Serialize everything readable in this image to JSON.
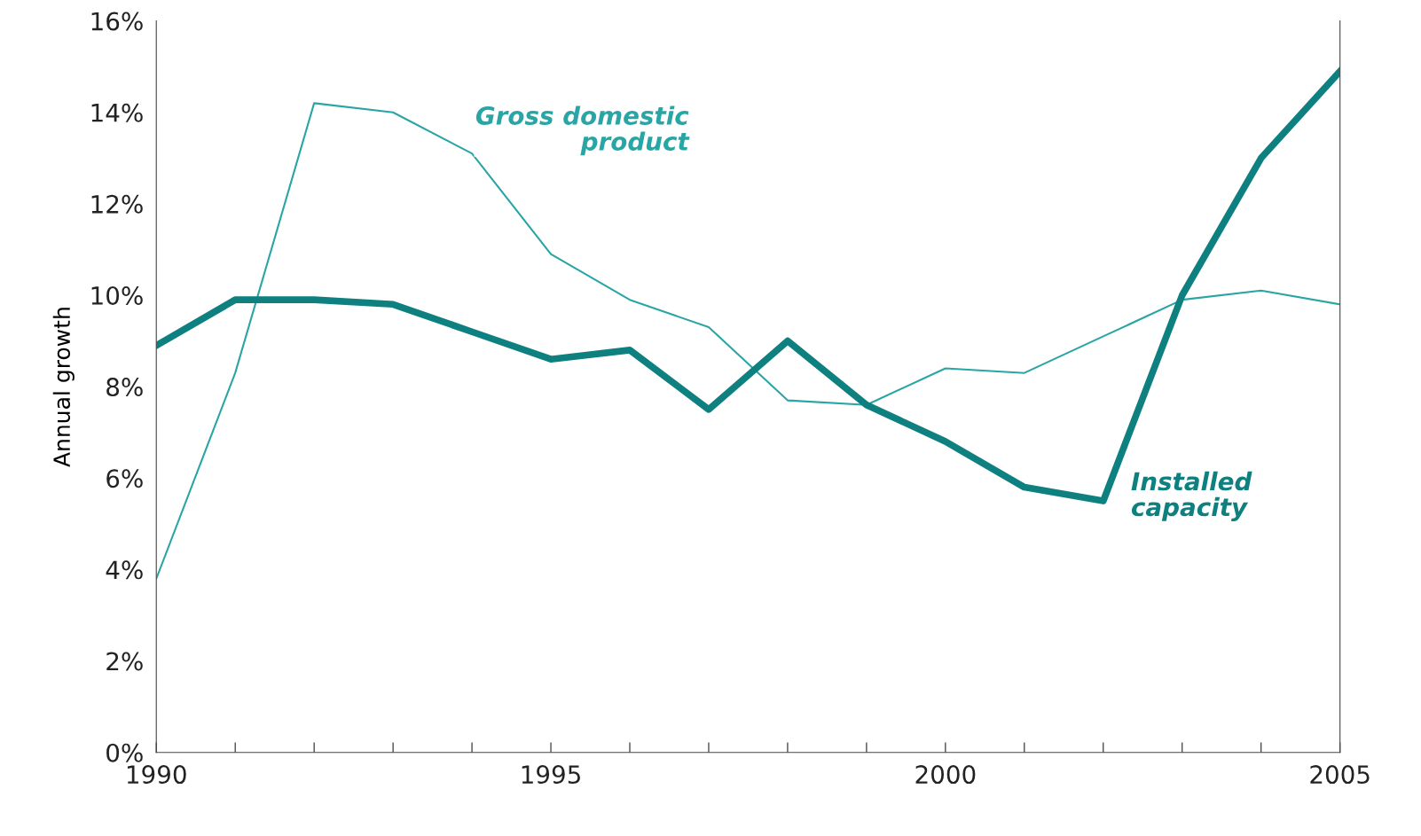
{
  "chart_data": {
    "type": "line",
    "ylabel": "Annual growth",
    "x": [
      1990,
      1991,
      1992,
      1993,
      1994,
      1995,
      1996,
      1997,
      1998,
      1999,
      2000,
      2001,
      2002,
      2003,
      2004,
      2005
    ],
    "series": [
      {
        "name": "Gross domestic product",
        "color": "#2aa5a5",
        "values": [
          3.8,
          8.3,
          14.2,
          14.0,
          13.1,
          10.9,
          9.9,
          9.3,
          7.7,
          7.6,
          8.4,
          8.3,
          9.1,
          9.9,
          10.1,
          9.8
        ]
      },
      {
        "name": "Installed capacity",
        "color": "#0e8080",
        "values": [
          8.9,
          9.9,
          9.9,
          9.8,
          9.2,
          8.6,
          8.8,
          7.5,
          9.0,
          7.6,
          6.8,
          5.8,
          5.5,
          10.0,
          13.0,
          14.9
        ]
      }
    ],
    "xlim": [
      1990,
      2005
    ],
    "xticks": [
      1990,
      {
        "value": 1991,
        "label": null
      },
      {
        "value": 1992,
        "label": null
      },
      {
        "value": 1993,
        "label": null
      },
      {
        "value": 1994,
        "label": null
      },
      1995,
      {
        "value": 1996,
        "label": null
      },
      {
        "value": 1997,
        "label": null
      },
      {
        "value": 1998,
        "label": null
      },
      {
        "value": 1999,
        "label": null
      },
      2000,
      {
        "value": 2001,
        "label": null
      },
      {
        "value": 2002,
        "label": null
      },
      {
        "value": 2003,
        "label": null
      },
      {
        "value": 2004,
        "label": null
      },
      2005
    ],
    "ylim": [
      0,
      16
    ],
    "yticks": [
      {
        "value": 0,
        "label": "0%"
      },
      {
        "value": 2,
        "label": "2%"
      },
      {
        "value": 4,
        "label": "4%"
      },
      {
        "value": 6,
        "label": "6%"
      },
      {
        "value": 8,
        "label": "8%"
      },
      {
        "value": 10,
        "label": "10%"
      },
      {
        "value": 12,
        "label": "12%"
      },
      {
        "value": 14,
        "label": "14%"
      },
      {
        "value": 16,
        "label": "16%"
      }
    ],
    "grid": false,
    "legend": false,
    "marker": "none",
    "line_style": "solid"
  }
}
